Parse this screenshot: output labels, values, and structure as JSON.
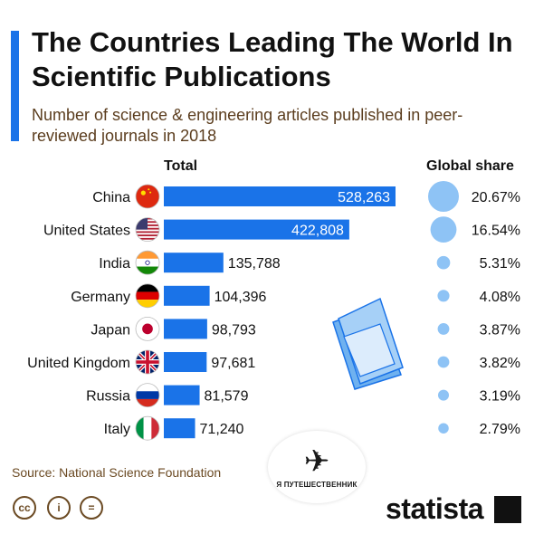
{
  "header": {
    "title": "The Countries Leading The World In Scientific Publications",
    "subtitle": "Number of science & engineering articles published in peer-reviewed journals in 2018"
  },
  "columns": {
    "total": "Total",
    "share": "Global share"
  },
  "footer": {
    "source": "Source: National Science Foundation",
    "brand": "statista",
    "badge": "Я ПУТЕШЕСТВЕННИК",
    "license_icons": [
      "cc-icon",
      "info-icon",
      "equals-icon"
    ]
  },
  "colors": {
    "bar": "#1a73e8",
    "bubble": "#8ec3f5",
    "accent": "#1a73e8"
  },
  "chart_data": {
    "type": "bar",
    "orientation": "horizontal",
    "categories": [
      "China",
      "United States",
      "India",
      "Germany",
      "Japan",
      "United Kingdom",
      "Russia",
      "Italy"
    ],
    "values": [
      528263,
      422808,
      135788,
      104396,
      98793,
      97681,
      81579,
      71240
    ],
    "value_labels": [
      "528,263",
      "422,808",
      "135,788",
      "104,396",
      "98,793",
      "97,681",
      "81,579",
      "71,240"
    ],
    "share": [
      20.67,
      16.54,
      5.31,
      4.08,
      3.87,
      3.82,
      3.19,
      2.79
    ],
    "share_labels": [
      "20.67%",
      "16.54%",
      "5.31%",
      "4.08%",
      "3.87%",
      "3.82%",
      "3.19%",
      "2.79%"
    ],
    "flags": [
      "china-flag-icon",
      "usa-flag-icon",
      "india-flag-icon",
      "germany-flag-icon",
      "japan-flag-icon",
      "uk-flag-icon",
      "russia-flag-icon",
      "italy-flag-icon"
    ],
    "title": "The Countries Leading The World In Scientific Publications",
    "xlabel": "Total",
    "ylabel": ""
  }
}
